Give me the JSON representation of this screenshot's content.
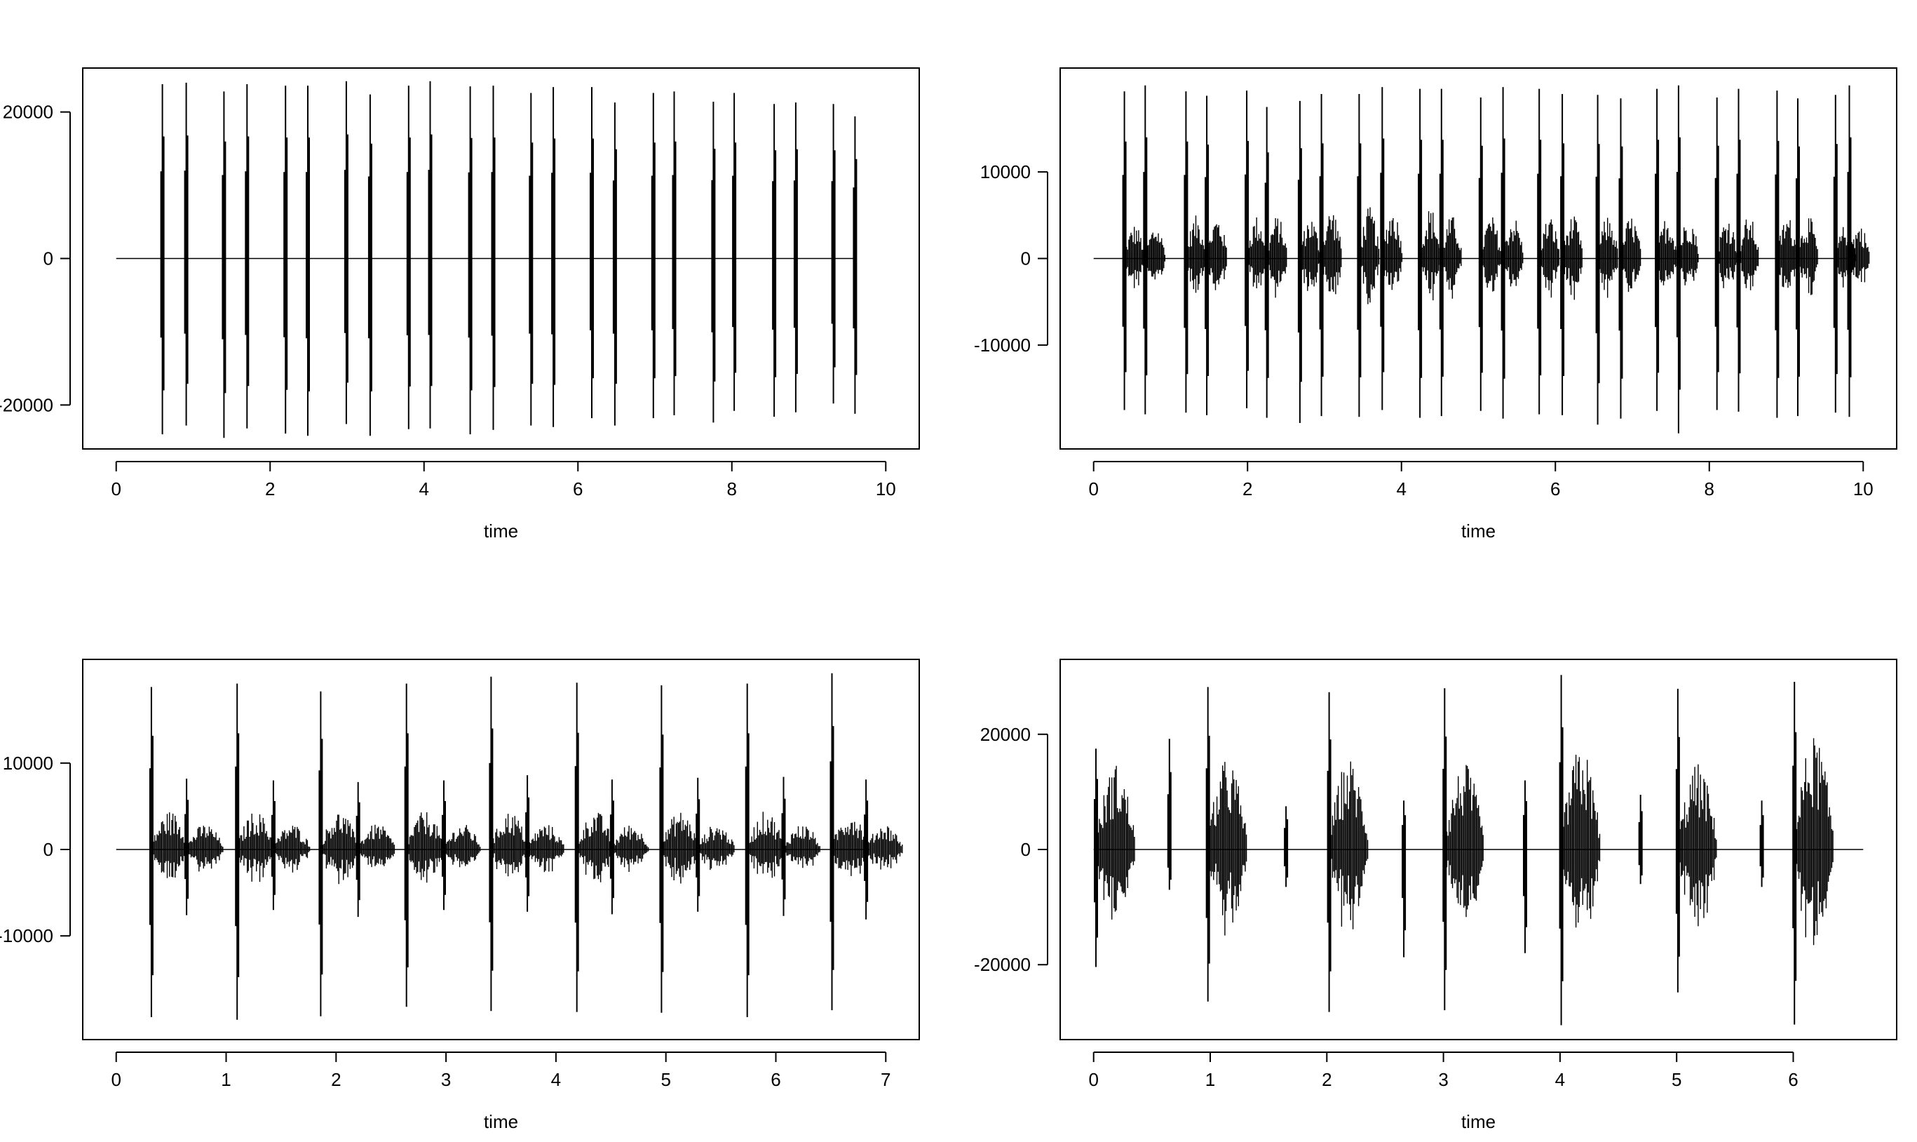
{
  "chart_data": [
    {
      "type": "line",
      "description": "waveform",
      "xlabel": "time",
      "ylabel": "",
      "xlim": [
        0,
        10
      ],
      "ylim": [
        -26000,
        26000
      ],
      "x_ticks": [
        0,
        2,
        4,
        6,
        8,
        10
      ],
      "y_ticks": [
        -20000,
        0,
        20000
      ],
      "baseline": 0,
      "signal_span": [
        0.0,
        9.6
      ],
      "events": [
        {
          "t": 0.6,
          "max": 23800,
          "min": -24000,
          "burst": 0
        },
        {
          "t": 0.91,
          "max": 24000,
          "min": -22800,
          "burst": 0
        },
        {
          "t": 1.4,
          "max": 22800,
          "min": -24500,
          "burst": 0
        },
        {
          "t": 1.7,
          "max": 23800,
          "min": -23200,
          "burst": 0
        },
        {
          "t": 2.2,
          "max": 23600,
          "min": -23900,
          "burst": 0
        },
        {
          "t": 2.49,
          "max": 23600,
          "min": -24200,
          "burst": 0
        },
        {
          "t": 2.99,
          "max": 24200,
          "min": -22600,
          "burst": 0
        },
        {
          "t": 3.3,
          "max": 22400,
          "min": -24200,
          "burst": 0
        },
        {
          "t": 3.8,
          "max": 23600,
          "min": -23300,
          "burst": 0
        },
        {
          "t": 4.08,
          "max": 24200,
          "min": -23200,
          "burst": 0
        },
        {
          "t": 4.6,
          "max": 23500,
          "min": -24000,
          "burst": 0
        },
        {
          "t": 4.9,
          "max": 23600,
          "min": -23400,
          "burst": 0
        },
        {
          "t": 5.39,
          "max": 22600,
          "min": -22800,
          "burst": 0
        },
        {
          "t": 5.68,
          "max": 23400,
          "min": -23000,
          "burst": 0
        },
        {
          "t": 6.18,
          "max": 23400,
          "min": -21800,
          "burst": 0
        },
        {
          "t": 6.48,
          "max": 21300,
          "min": -22800,
          "burst": 0
        },
        {
          "t": 6.98,
          "max": 22600,
          "min": -21800,
          "burst": 0
        },
        {
          "t": 7.25,
          "max": 22800,
          "min": -21400,
          "burst": 0
        },
        {
          "t": 7.76,
          "max": 21400,
          "min": -22400,
          "burst": 0
        },
        {
          "t": 8.03,
          "max": 22600,
          "min": -20800,
          "burst": 0
        },
        {
          "t": 8.55,
          "max": 21100,
          "min": -21600,
          "burst": 0
        },
        {
          "t": 8.83,
          "max": 21300,
          "min": -21000,
          "burst": 0
        },
        {
          "t": 9.32,
          "max": 21100,
          "min": -19800,
          "burst": 0
        },
        {
          "t": 9.6,
          "max": 19400,
          "min": -21200,
          "burst": 0
        }
      ]
    },
    {
      "type": "line",
      "description": "waveform",
      "xlabel": "time",
      "ylabel": "",
      "xlim": [
        0,
        10
      ],
      "ylim": [
        -22000,
        22000
      ],
      "x_ticks": [
        0,
        2,
        4,
        6,
        8,
        10
      ],
      "y_ticks": [
        -10000,
        0,
        10000
      ],
      "baseline": 0,
      "signal_span": [
        0.0,
        9.9
      ],
      "events": [
        {
          "t": 0.4,
          "max": 19300,
          "min": -17500,
          "burst": 4000
        },
        {
          "t": 0.67,
          "max": 20000,
          "min": -18000,
          "burst": 4000
        },
        {
          "t": 1.2,
          "max": 19300,
          "min": -17800,
          "burst": 5000
        },
        {
          "t": 1.47,
          "max": 18800,
          "min": -18100,
          "burst": 5000
        },
        {
          "t": 1.99,
          "max": 19400,
          "min": -17300,
          "burst": 5000
        },
        {
          "t": 2.25,
          "max": 17500,
          "min": -18400,
          "burst": 5000
        },
        {
          "t": 2.68,
          "max": 18200,
          "min": -19000,
          "burst": 5000
        },
        {
          "t": 2.96,
          "max": 19000,
          "min": -18200,
          "burst": 6000
        },
        {
          "t": 3.45,
          "max": 19000,
          "min": -18300,
          "burst": 6000
        },
        {
          "t": 3.75,
          "max": 19800,
          "min": -17500,
          "burst": 6000
        },
        {
          "t": 4.24,
          "max": 19600,
          "min": -18400,
          "burst": 6000
        },
        {
          "t": 4.52,
          "max": 19600,
          "min": -18200,
          "burst": 5000
        },
        {
          "t": 5.03,
          "max": 18600,
          "min": -17600,
          "burst": 5000
        },
        {
          "t": 5.32,
          "max": 19800,
          "min": -18500,
          "burst": 5000
        },
        {
          "t": 5.79,
          "max": 19600,
          "min": -18000,
          "burst": 5000
        },
        {
          "t": 6.09,
          "max": 19000,
          "min": -18100,
          "burst": 5000
        },
        {
          "t": 6.55,
          "max": 18900,
          "min": -19200,
          "burst": 5000
        },
        {
          "t": 6.85,
          "max": 18500,
          "min": -18500,
          "burst": 5000
        },
        {
          "t": 7.32,
          "max": 19600,
          "min": -17600,
          "burst": 5000
        },
        {
          "t": 7.6,
          "max": 20000,
          "min": -20200,
          "burst": 5000
        },
        {
          "t": 8.1,
          "max": 18600,
          "min": -17500,
          "burst": 5000
        },
        {
          "t": 8.38,
          "max": 19600,
          "min": -17700,
          "burst": 5000
        },
        {
          "t": 8.88,
          "max": 19400,
          "min": -18400,
          "burst": 5000
        },
        {
          "t": 9.15,
          "max": 18500,
          "min": -18200,
          "burst": 5000
        },
        {
          "t": 9.64,
          "max": 18900,
          "min": -17800,
          "burst": 4000
        },
        {
          "t": 9.82,
          "max": 20000,
          "min": -18300,
          "burst": 4000
        }
      ]
    },
    {
      "type": "line",
      "description": "waveform",
      "xlabel": "time",
      "ylabel": "",
      "xlim": [
        0,
        7
      ],
      "ylim": [
        -22000,
        22000
      ],
      "x_ticks": [
        0,
        1,
        2,
        3,
        4,
        5,
        6,
        7
      ],
      "y_ticks": [
        -10000,
        0,
        10000
      ],
      "baseline": 0,
      "signal_span": [
        0.0,
        6.85
      ],
      "events": [
        {
          "t": 0.32,
          "max": 18800,
          "min": -19400,
          "burst": 4500
        },
        {
          "t": 0.64,
          "max": 8200,
          "min": -7600,
          "burst": 3000
        },
        {
          "t": 1.1,
          "max": 19200,
          "min": -19700,
          "burst": 4500
        },
        {
          "t": 1.43,
          "max": 8000,
          "min": -7000,
          "burst": 3000
        },
        {
          "t": 1.86,
          "max": 18300,
          "min": -19300,
          "burst": 4500
        },
        {
          "t": 2.2,
          "max": 7800,
          "min": -7800,
          "burst": 3000
        },
        {
          "t": 2.64,
          "max": 19200,
          "min": -18200,
          "burst": 4500
        },
        {
          "t": 2.98,
          "max": 8000,
          "min": -7000,
          "burst": 3000
        },
        {
          "t": 3.41,
          "max": 20000,
          "min": -18700,
          "burst": 4500
        },
        {
          "t": 3.74,
          "max": 8600,
          "min": -7200,
          "burst": 3000
        },
        {
          "t": 4.19,
          "max": 19300,
          "min": -18800,
          "burst": 4500
        },
        {
          "t": 4.51,
          "max": 8100,
          "min": -7500,
          "burst": 3000
        },
        {
          "t": 4.96,
          "max": 19000,
          "min": -18900,
          "burst": 4500
        },
        {
          "t": 5.29,
          "max": 8300,
          "min": -7200,
          "burst": 3000
        },
        {
          "t": 5.74,
          "max": 19200,
          "min": -19400,
          "burst": 4500
        },
        {
          "t": 6.07,
          "max": 8400,
          "min": -7700,
          "burst": 3000
        },
        {
          "t": 6.51,
          "max": 20400,
          "min": -18600,
          "burst": 4500
        },
        {
          "t": 6.82,
          "max": 8100,
          "min": -8100,
          "burst": 3000
        }
      ]
    },
    {
      "type": "line",
      "description": "waveform",
      "xlabel": "time",
      "ylabel": "",
      "xlim": [
        0,
        6.6
      ],
      "ylim": [
        -33000,
        33000
      ],
      "x_ticks": [
        0,
        1,
        2,
        3,
        4,
        5,
        6
      ],
      "y_ticks": [
        -20000,
        0,
        20000
      ],
      "baseline": 0,
      "signal_span": [
        0.0,
        6.6
      ],
      "events": [
        {
          "t": 0.02,
          "max": 17500,
          "min": -20400,
          "burst": 15000
        },
        {
          "t": 0.65,
          "max": 19200,
          "min": -7000,
          "burst": 0
        },
        {
          "t": 0.98,
          "max": 28200,
          "min": -26400,
          "burst": 16000
        },
        {
          "t": 1.65,
          "max": 7500,
          "min": -6500,
          "burst": 0
        },
        {
          "t": 2.02,
          "max": 27300,
          "min": -28200,
          "burst": 16000
        },
        {
          "t": 2.66,
          "max": 8500,
          "min": -18700,
          "burst": 0
        },
        {
          "t": 3.01,
          "max": 28000,
          "min": -27900,
          "burst": 15000
        },
        {
          "t": 3.7,
          "max": 12000,
          "min": -18000,
          "burst": 0
        },
        {
          "t": 4.01,
          "max": 30300,
          "min": -30500,
          "burst": 18000
        },
        {
          "t": 4.69,
          "max": 9500,
          "min": -6000,
          "burst": 0
        },
        {
          "t": 5.01,
          "max": 27900,
          "min": -24800,
          "burst": 15000
        },
        {
          "t": 5.73,
          "max": 8500,
          "min": -6500,
          "burst": 0
        },
        {
          "t": 6.01,
          "max": 29100,
          "min": -30400,
          "burst": 20000
        }
      ]
    }
  ]
}
